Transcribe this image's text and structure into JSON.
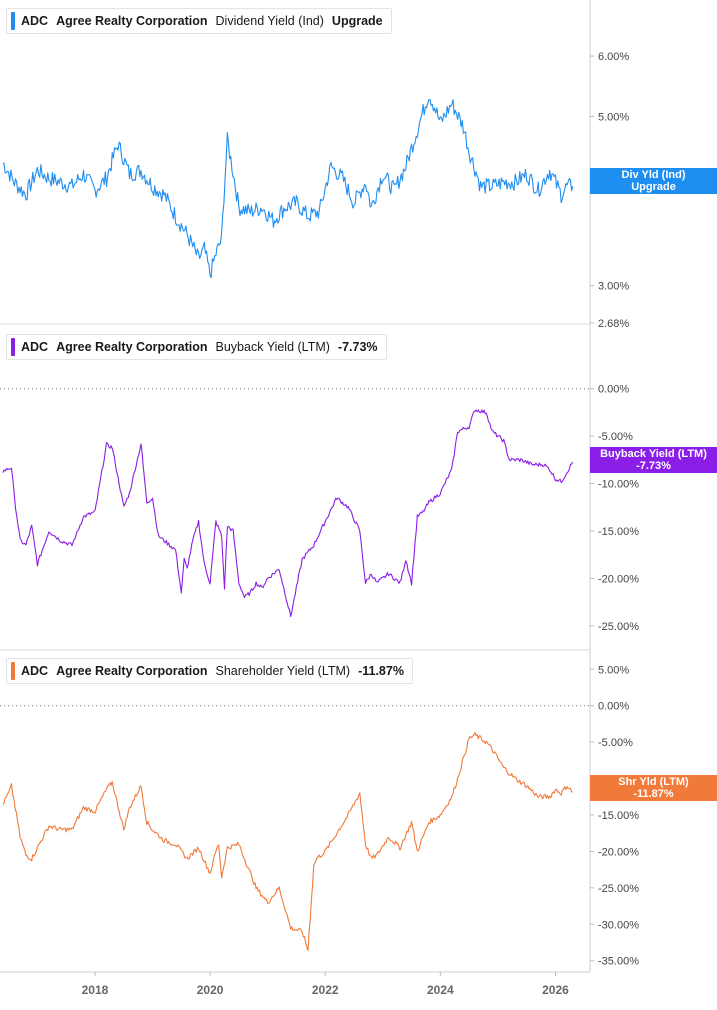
{
  "chart_data": [
    {
      "type": "line",
      "ticker": "ADC",
      "company": "Agree Realty Corporation",
      "metric": "Dividend Yield (Ind)",
      "value_label": "Upgrade",
      "tag_line1": "Div Yld (Ind)",
      "tag_line2": "Upgrade",
      "color": "#1f8ef1",
      "scale": "log",
      "ylim": [
        2.68,
        7.0
      ],
      "yticks": [
        "6.00%",
        "5.00%",
        "3.00%",
        "2.68%"
      ],
      "ytick_values": [
        6.0,
        5.0,
        3.0,
        2.68
      ],
      "series": [
        {
          "x": [
            2016.4,
            2016.6,
            2016.8,
            2017.0,
            2017.2,
            2017.4,
            2017.6,
            2017.8,
            2018.0,
            2018.2,
            2018.4,
            2018.6,
            2018.8,
            2019.0,
            2019.2,
            2019.4,
            2019.6,
            2019.8,
            2019.9,
            2020.0,
            2020.1,
            2020.2,
            2020.3,
            2020.5,
            2020.7,
            2020.9,
            2021.1,
            2021.3,
            2021.5,
            2021.7,
            2021.9,
            2022.1,
            2022.3,
            2022.5,
            2022.7,
            2022.8,
            2023.0,
            2023.2,
            2023.4,
            2023.6,
            2023.8,
            2023.9,
            2024.0,
            2024.2,
            2024.4,
            2024.5,
            2024.7,
            2024.9,
            2025.1,
            2025.3,
            2025.5,
            2025.7,
            2025.9,
            2026.0,
            2026.1,
            2026.2,
            2026.3
          ],
          "y": [
            4.35,
            4.1,
            3.95,
            4.25,
            4.15,
            4.1,
            4.05,
            4.2,
            4.0,
            4.15,
            4.6,
            4.2,
            4.25,
            4.05,
            3.95,
            3.7,
            3.5,
            3.25,
            3.35,
            3.1,
            3.3,
            3.45,
            4.65,
            3.8,
            3.75,
            3.8,
            3.65,
            3.8,
            3.85,
            3.7,
            3.75,
            4.3,
            4.15,
            3.85,
            4.1,
            3.8,
            4.2,
            4.0,
            4.3,
            4.8,
            5.35,
            5.15,
            4.9,
            5.2,
            4.85,
            4.5,
            4.05,
            4.05,
            4.1,
            4.1,
            4.2,
            4.0,
            4.25,
            4.1,
            3.95,
            4.05,
            4.05
          ]
        }
      ]
    },
    {
      "type": "line",
      "ticker": "ADC",
      "company": "Agree Realty Corporation",
      "metric": "Buyback Yield (LTM)",
      "value_label": "-7.73%",
      "tag_line1": "Buyback Yield (LTM)",
      "tag_line2": "-7.73%",
      "color": "#8a1ee6",
      "ylim": [
        -26.5,
        0.5
      ],
      "yticks": [
        "0.00%",
        "-5.00%",
        "-10.00%",
        "-15.00%",
        "-20.00%",
        "-25.00%"
      ],
      "ytick_values": [
        0,
        -5,
        -10,
        -15,
        -20,
        -25
      ],
      "zero_line": true,
      "series": [
        {
          "x": [
            2016.4,
            2016.55,
            2016.6,
            2016.7,
            2016.8,
            2016.9,
            2017.0,
            2017.2,
            2017.4,
            2017.6,
            2017.8,
            2018.0,
            2018.2,
            2018.3,
            2018.5,
            2018.6,
            2018.8,
            2018.9,
            2019.0,
            2019.1,
            2019.2,
            2019.4,
            2019.5,
            2019.55,
            2019.6,
            2019.7,
            2019.8,
            2019.9,
            2020.0,
            2020.1,
            2020.2,
            2020.25,
            2020.3,
            2020.4,
            2020.5,
            2020.6,
            2020.7,
            2020.8,
            2020.9,
            2021.0,
            2021.2,
            2021.4,
            2021.6,
            2021.8,
            2022.0,
            2022.2,
            2022.4,
            2022.6,
            2022.7,
            2022.8,
            2022.9,
            2023.1,
            2023.3,
            2023.4,
            2023.5,
            2023.6,
            2023.7,
            2023.8,
            2023.9,
            2024.0,
            2024.2,
            2024.3,
            2024.5,
            2024.6,
            2024.8,
            2024.9,
            2025.1,
            2025.2,
            2025.4,
            2025.6,
            2025.8,
            2025.9,
            2026.0,
            2026.1,
            2026.2,
            2026.3
          ],
          "y": [
            -8.7,
            -8.3,
            -11.5,
            -16.0,
            -16.5,
            -14.5,
            -18.5,
            -15.0,
            -16.0,
            -16.5,
            -13.5,
            -13.0,
            -5.9,
            -6.2,
            -12.5,
            -11.0,
            -5.8,
            -12.0,
            -11.5,
            -15.5,
            -16.0,
            -17.0,
            -21.5,
            -18.0,
            -19.0,
            -16.0,
            -14.0,
            -18.5,
            -20.5,
            -14.0,
            -15.5,
            -21.0,
            -14.5,
            -15.0,
            -20.5,
            -22.0,
            -21.5,
            -20.5,
            -21.0,
            -20.0,
            -19.0,
            -24.0,
            -18.0,
            -16.5,
            -14.0,
            -11.5,
            -12.5,
            -15.0,
            -20.5,
            -19.5,
            -20.5,
            -19.5,
            -20.5,
            -18.0,
            -20.5,
            -13.5,
            -13.0,
            -12.0,
            -11.5,
            -11.0,
            -8.5,
            -4.5,
            -4.0,
            -2.2,
            -2.5,
            -4.5,
            -5.5,
            -7.5,
            -7.5,
            -8.0,
            -8.0,
            -8.5,
            -9.5,
            -9.8,
            -8.8,
            -7.73
          ]
        }
      ]
    },
    {
      "type": "line",
      "ticker": "ADC",
      "company": "Agree Realty Corporation",
      "metric": "Shareholder Yield (LTM)",
      "value_label": "-11.87%",
      "tag_line1": "Shr Yld (LTM)",
      "tag_line2": "-11.87%",
      "color": "#f07a3a",
      "ylim": [
        -36.0,
        6.0
      ],
      "yticks": [
        "5.00%",
        "0.00%",
        "-5.00%",
        "-10.00%",
        "-15.00%",
        "-20.00%",
        "-25.00%",
        "-30.00%",
        "-35.00%"
      ],
      "ytick_values": [
        5,
        0,
        -5,
        -10,
        -15,
        -20,
        -25,
        -30,
        -35
      ],
      "zero_line": true,
      "series": [
        {
          "x": [
            2016.4,
            2016.5,
            2016.55,
            2016.7,
            2016.8,
            2016.9,
            2017.0,
            2017.2,
            2017.4,
            2017.6,
            2017.8,
            2018.0,
            2018.2,
            2018.3,
            2018.5,
            2018.6,
            2018.8,
            2018.9,
            2019.0,
            2019.2,
            2019.4,
            2019.6,
            2019.8,
            2020.0,
            2020.1,
            2020.15,
            2020.2,
            2020.3,
            2020.5,
            2020.7,
            2020.8,
            2021.0,
            2021.2,
            2021.4,
            2021.6,
            2021.7,
            2021.8,
            2021.85,
            2022.0,
            2022.2,
            2022.4,
            2022.6,
            2022.7,
            2022.8,
            2022.9,
            2023.1,
            2023.3,
            2023.5,
            2023.6,
            2023.8,
            2024.0,
            2024.2,
            2024.3,
            2024.5,
            2024.6,
            2024.8,
            2024.9,
            2025.1,
            2025.3,
            2025.5,
            2025.7,
            2025.9,
            2026.0,
            2026.1,
            2026.2,
            2026.3
          ],
          "y": [
            -13.5,
            -12.0,
            -11.0,
            -18.0,
            -20.5,
            -21.0,
            -19.5,
            -16.5,
            -17.0,
            -17.0,
            -14.0,
            -14.5,
            -11.5,
            -10.5,
            -17.0,
            -14.0,
            -11.0,
            -16.0,
            -17.0,
            -18.5,
            -19.0,
            -21.0,
            -19.5,
            -23.0,
            -20.0,
            -19.0,
            -23.5,
            -19.5,
            -19.0,
            -23.0,
            -25.0,
            -27.0,
            -25.0,
            -30.5,
            -31.0,
            -33.5,
            -22.0,
            -21.0,
            -20.0,
            -17.5,
            -15.0,
            -12.0,
            -19.0,
            -21.0,
            -20.5,
            -18.0,
            -19.5,
            -16.0,
            -20.0,
            -16.0,
            -15.0,
            -12.5,
            -10.0,
            -4.5,
            -4.0,
            -5.0,
            -6.0,
            -8.5,
            -10.0,
            -11.0,
            -12.5,
            -12.5,
            -11.5,
            -12.0,
            -11.0,
            -11.87
          ]
        }
      ]
    }
  ],
  "x_axis": {
    "labels": [
      "2018",
      "2020",
      "2022",
      "2024",
      "2026"
    ],
    "values": [
      2018,
      2020,
      2022,
      2024,
      2026
    ],
    "xlim": [
      2016.35,
      2026.6
    ]
  }
}
